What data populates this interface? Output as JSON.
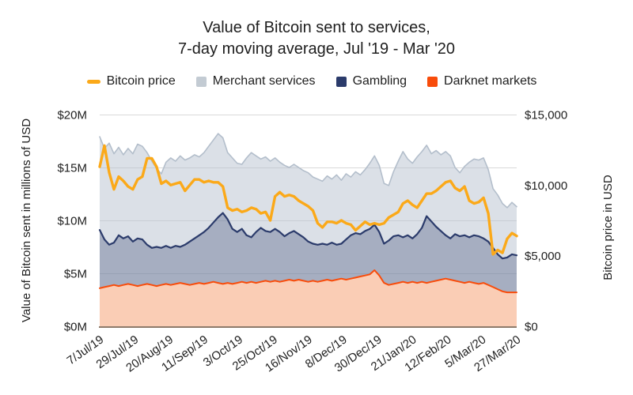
{
  "title": {
    "line1": "Value of Bitcoin sent to services,",
    "line2": "7-day moving average, Jul '19 - Mar '20"
  },
  "legend": {
    "items": [
      {
        "label": "Bitcoin price",
        "color": "#FBA919",
        "shape": "dash"
      },
      {
        "label": "Merchant services",
        "color": "#C3CBD3",
        "shape": "square"
      },
      {
        "label": "Gambling",
        "color": "#2B3B6B",
        "shape": "square"
      },
      {
        "label": "Darknet markets",
        "color": "#F84C0B",
        "shape": "square"
      }
    ]
  },
  "axes": {
    "left": {
      "title": "Value of Bitcoin sent in millions of USD",
      "ticks": [
        "$20M",
        "$15M",
        "$10M",
        "$5M",
        "$0M"
      ],
      "tick_values": [
        20,
        15,
        10,
        5,
        0
      ]
    },
    "right": {
      "title": "Bitcoin price in USD",
      "ticks": [
        "$15,000",
        "$10,000",
        "$5,000",
        "$0"
      ],
      "tick_values": [
        15000,
        10000,
        5000,
        0
      ]
    },
    "x": {
      "ticks": [
        "7/Jul/19",
        "29/Jul/19",
        "20/Aug/19",
        "11/Sep/19",
        "3/Oct/19",
        "25/Oct/19",
        "16/Nov/19",
        "8/Dec/19",
        "30/Dec/19",
        "21/Jan/20",
        "12/Feb/20",
        "5/Mar/20",
        "27/Mar/20"
      ],
      "tick_day_interval": 22
    }
  },
  "colors": {
    "gridline": "#D9D9D9",
    "baseline": "#8D7A6B",
    "text": "#1E1E1E"
  },
  "chart_data": {
    "type": "area",
    "title": "Value of Bitcoin sent to services, 7-day moving average, Jul '19 - Mar '20",
    "x_start_day": 0,
    "x_end_day": 264,
    "x_step_days": 3,
    "x_tick_labels": [
      "7/Jul/19",
      "29/Jul/19",
      "20/Aug/19",
      "11/Sep/19",
      "3/Oct/19",
      "25/Oct/19",
      "16/Nov/19",
      "8/Dec/19",
      "30/Dec/19",
      "21/Jan/20",
      "12/Feb/20",
      "5/Mar/20",
      "27/Mar/20"
    ],
    "left_axis_label": "Value of Bitcoin sent in millions of USD",
    "right_axis_label": "Bitcoin price in USD",
    "left_axis_range_millions_usd": [
      0,
      20
    ],
    "right_axis_range_usd": [
      0,
      15000
    ],
    "grid": "horizontal-only",
    "legend_position": "top",
    "series": [
      {
        "name": "Merchant services",
        "type": "area",
        "axis": "left",
        "unit": "millions USD",
        "color": "#B3BECB",
        "fill": "rgba(183,194,208,0.5)",
        "stroke_width": 1.6,
        "values": [
          17.9,
          16.8,
          17.3,
          16.3,
          16.9,
          16.2,
          16.8,
          16.3,
          17.2,
          17.0,
          16.4,
          15.6,
          14.9,
          14.4,
          15.5,
          15.9,
          15.6,
          16.1,
          15.7,
          15.9,
          16.2,
          16.0,
          16.4,
          17.0,
          17.6,
          18.2,
          17.8,
          16.4,
          15.9,
          15.4,
          15.3,
          15.9,
          16.4,
          16.1,
          15.8,
          16.0,
          15.6,
          15.9,
          15.5,
          15.2,
          15.0,
          15.3,
          15.0,
          14.7,
          14.5,
          14.1,
          13.9,
          13.7,
          14.2,
          13.9,
          14.3,
          13.8,
          14.4,
          14.1,
          14.6,
          14.3,
          14.8,
          15.4,
          16.1,
          15.2,
          13.5,
          13.3,
          14.6,
          15.6,
          16.5,
          15.8,
          15.4,
          16.0,
          16.5,
          17.1,
          16.3,
          16.6,
          16.2,
          16.5,
          16.1,
          15.0,
          14.5,
          15.1,
          15.5,
          15.8,
          15.7,
          15.9,
          14.8,
          13.0,
          12.4,
          11.6,
          11.2,
          11.7,
          11.3
        ]
      },
      {
        "name": "Gambling",
        "type": "area",
        "axis": "left",
        "unit": "millions USD",
        "color": "#2B3B6B",
        "fill": "rgba(43,59,107,0.30)",
        "stroke_width": 2.2,
        "values": [
          9.1,
          8.2,
          7.7,
          7.9,
          8.6,
          8.3,
          8.5,
          8.0,
          8.3,
          8.2,
          7.7,
          7.4,
          7.5,
          7.4,
          7.6,
          7.4,
          7.6,
          7.5,
          7.7,
          8.0,
          8.3,
          8.6,
          8.9,
          9.3,
          9.8,
          10.3,
          10.7,
          10.1,
          9.2,
          8.9,
          9.2,
          8.6,
          8.4,
          8.9,
          9.3,
          9.0,
          8.9,
          9.2,
          8.9,
          8.5,
          8.8,
          9.0,
          8.7,
          8.4,
          8.0,
          7.8,
          7.7,
          7.8,
          7.7,
          7.9,
          7.7,
          7.8,
          8.2,
          8.6,
          8.8,
          8.7,
          9.0,
          9.2,
          9.6,
          8.9,
          7.8,
          8.1,
          8.5,
          8.6,
          8.4,
          8.6,
          8.3,
          8.7,
          9.3,
          10.4,
          9.9,
          9.4,
          9.0,
          8.6,
          8.3,
          8.7,
          8.5,
          8.6,
          8.4,
          8.6,
          8.5,
          8.3,
          8.0,
          7.4,
          6.8,
          6.4,
          6.5,
          6.8,
          6.7
        ]
      },
      {
        "name": "Darknet markets",
        "type": "area",
        "axis": "left",
        "unit": "millions USD",
        "color": "#F84C0B",
        "fill": "#FACDB5",
        "stroke_width": 2,
        "values": [
          3.6,
          3.7,
          3.8,
          3.9,
          3.8,
          3.9,
          4.0,
          3.9,
          3.8,
          3.9,
          4.0,
          3.9,
          3.8,
          3.9,
          4.0,
          3.9,
          4.0,
          4.1,
          4.0,
          3.9,
          4.0,
          4.1,
          4.0,
          4.1,
          4.2,
          4.1,
          4.0,
          4.1,
          4.0,
          4.1,
          4.2,
          4.1,
          4.2,
          4.1,
          4.2,
          4.3,
          4.2,
          4.3,
          4.2,
          4.3,
          4.4,
          4.3,
          4.4,
          4.3,
          4.2,
          4.3,
          4.2,
          4.3,
          4.4,
          4.3,
          4.4,
          4.5,
          4.4,
          4.5,
          4.6,
          4.7,
          4.8,
          4.9,
          5.3,
          4.8,
          4.1,
          3.9,
          4.0,
          4.1,
          4.2,
          4.1,
          4.2,
          4.1,
          4.2,
          4.1,
          4.2,
          4.3,
          4.4,
          4.5,
          4.4,
          4.3,
          4.2,
          4.1,
          4.2,
          4.1,
          4.0,
          4.1,
          3.9,
          3.7,
          3.5,
          3.3,
          3.2,
          3.2,
          3.2
        ]
      },
      {
        "name": "Bitcoin price",
        "type": "line",
        "axis": "right",
        "unit": "USD",
        "color": "#FBA919",
        "fill": "none",
        "stroke_width": 3.4,
        "values": [
          11300,
          12800,
          10900,
          9700,
          10600,
          10300,
          9900,
          9700,
          10400,
          10600,
          11900,
          11900,
          11300,
          10100,
          10300,
          10000,
          10100,
          10200,
          9600,
          10000,
          10400,
          10400,
          10200,
          10300,
          10200,
          10200,
          9900,
          8400,
          8200,
          8300,
          8100,
          8200,
          8400,
          8300,
          8000,
          8100,
          7500,
          9200,
          9500,
          9200,
          9300,
          9200,
          8900,
          8700,
          8500,
          8200,
          7300,
          7000,
          7400,
          7400,
          7300,
          7500,
          7300,
          7200,
          6800,
          7100,
          7400,
          7200,
          7300,
          7200,
          7300,
          7700,
          7900,
          8100,
          8700,
          8900,
          8600,
          8400,
          8900,
          9400,
          9400,
          9600,
          9900,
          10200,
          10300,
          9800,
          9600,
          9900,
          8900,
          8700,
          8800,
          9100,
          8000,
          5100,
          5400,
          5200,
          6200,
          6600,
          6400
        ]
      }
    ]
  }
}
